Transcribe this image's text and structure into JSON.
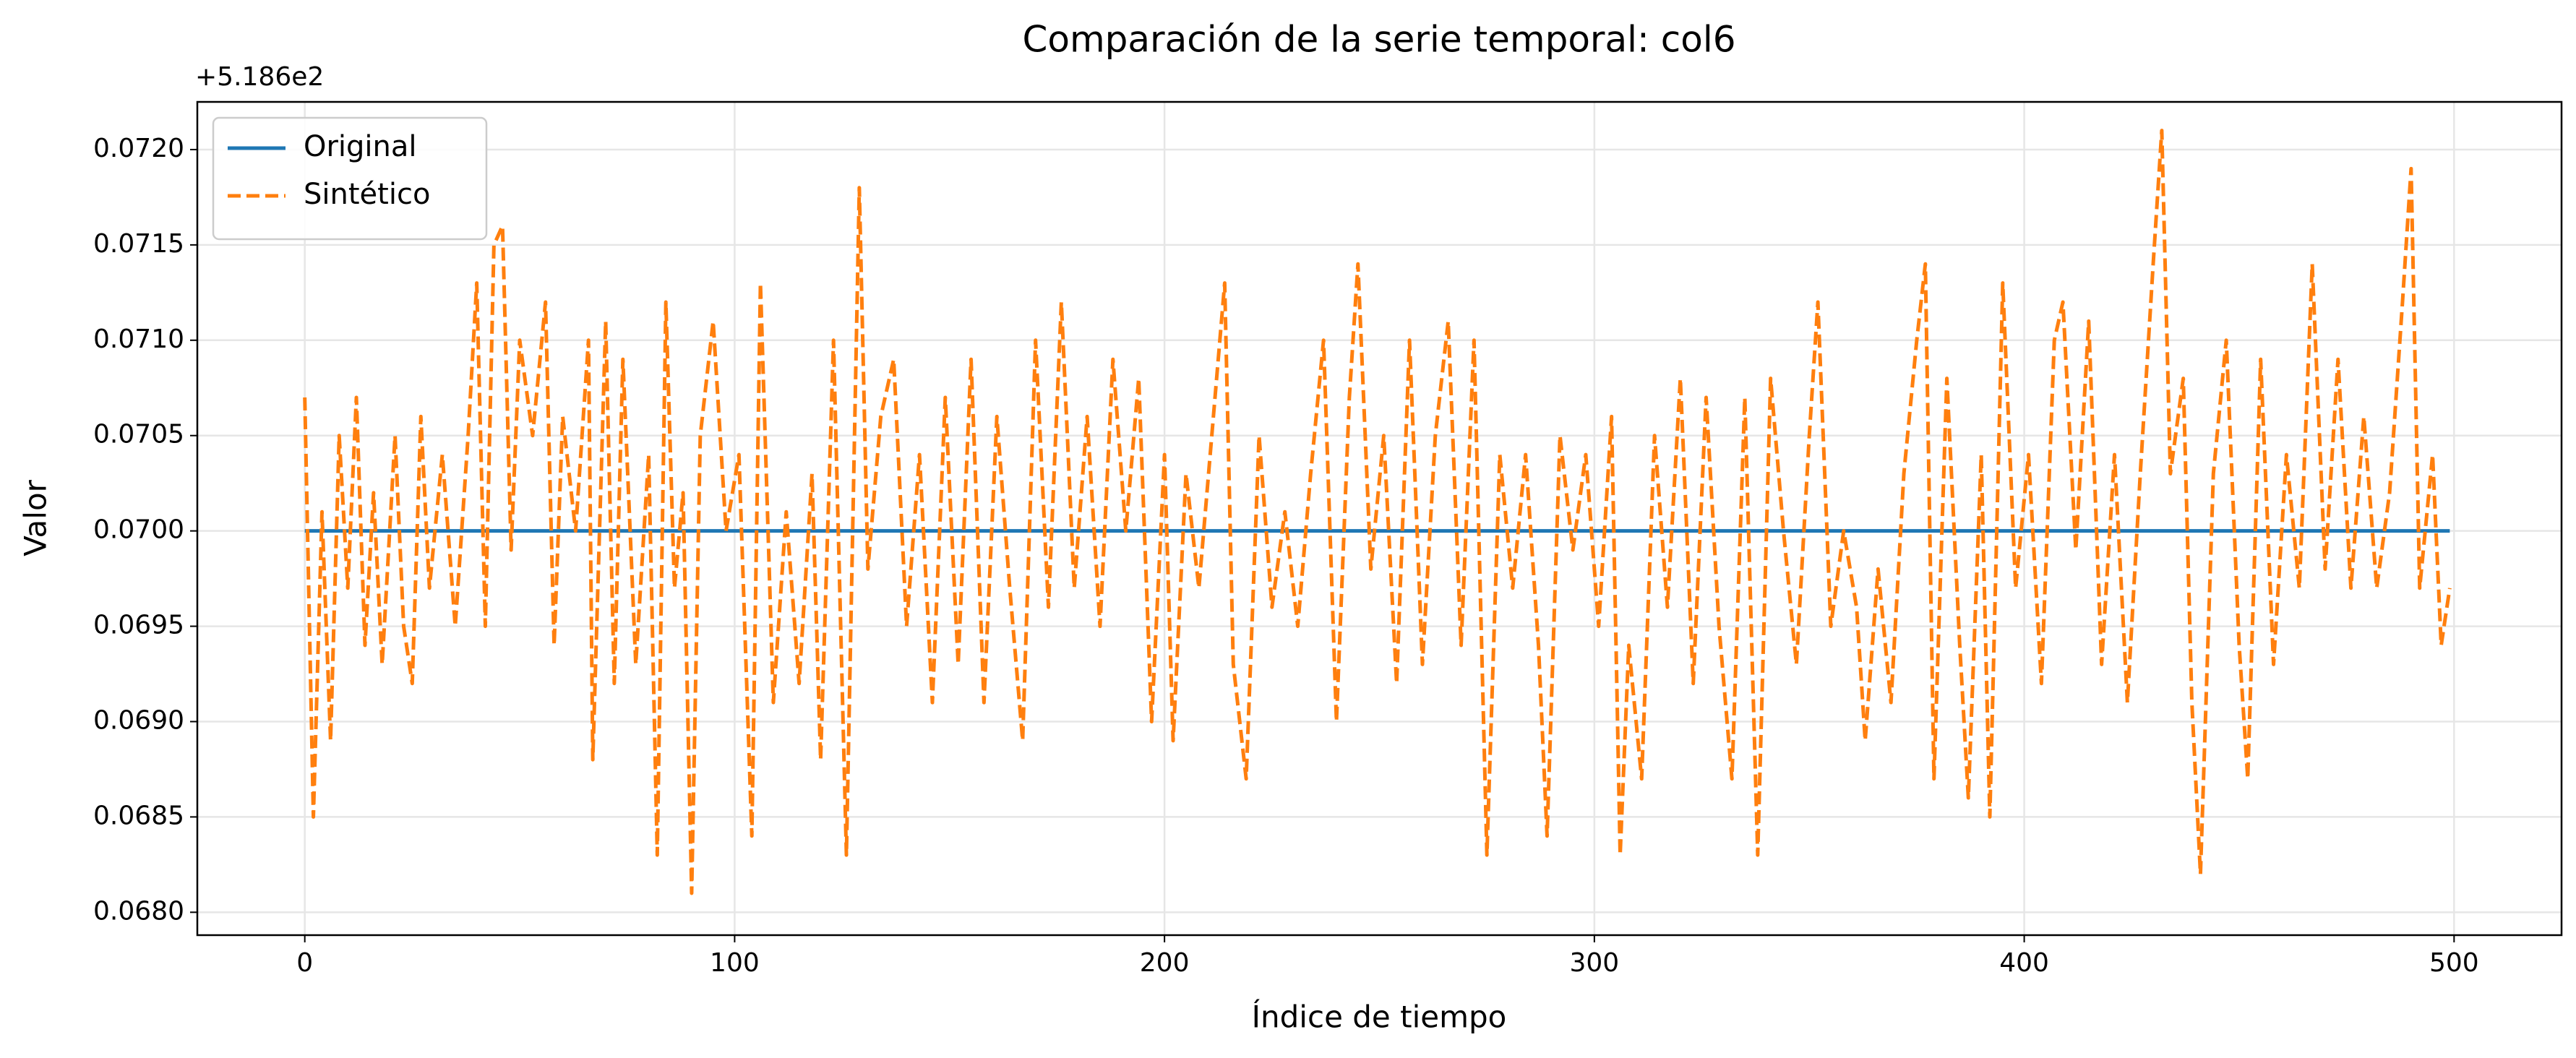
{
  "chart_data": {
    "type": "line",
    "title": "Comparación de la serie temporal: col6",
    "x_label": "Índice de tiempo",
    "y_label": "Valor",
    "y_offset_label": "+5.186e2",
    "xlim": [
      -25,
      525
    ],
    "xticks": [
      0,
      100,
      200,
      300,
      400,
      500
    ],
    "ylim": [
      0.06788,
      0.07225
    ],
    "yticks": [
      {
        "value": 0.068,
        "label": "0.0680"
      },
      {
        "value": 0.0685,
        "label": "0.0685"
      },
      {
        "value": 0.069,
        "label": "0.0690"
      },
      {
        "value": 0.0695,
        "label": "0.0695"
      },
      {
        "value": 0.07,
        "label": "0.0700"
      },
      {
        "value": 0.0705,
        "label": "0.0705"
      },
      {
        "value": 0.071,
        "label": "0.0710"
      },
      {
        "value": 0.0715,
        "label": "0.0715"
      },
      {
        "value": 0.072,
        "label": "0.0720"
      }
    ],
    "grid": true,
    "legend": "upper left",
    "series": [
      {
        "name": "Original",
        "color": "#1f77b4",
        "dash": false,
        "x": [
          0,
          499
        ],
        "values": [
          0.07,
          0.07
        ]
      },
      {
        "name": "Sintético",
        "color": "#ff7f0e",
        "dash": true,
        "x": [
          0,
          2,
          4,
          6,
          8,
          10,
          12,
          14,
          16,
          18,
          21,
          23,
          25,
          27,
          29,
          32,
          35,
          38,
          40,
          42,
          44,
          46,
          48,
          50,
          53,
          56,
          58,
          60,
          63,
          66,
          67,
          70,
          72,
          74,
          77,
          80,
          82,
          84,
          86,
          88,
          90,
          92,
          95,
          98,
          101,
          104,
          106,
          109,
          112,
          115,
          118,
          120,
          123,
          126,
          129,
          131,
          134,
          137,
          140,
          143,
          146,
          149,
          152,
          155,
          158,
          161,
          164,
          167,
          170,
          173,
          176,
          179,
          182,
          185,
          188,
          191,
          194,
          197,
          200,
          202,
          205,
          208,
          211,
          214,
          216,
          219,
          222,
          225,
          228,
          231,
          234,
          237,
          240,
          243,
          245,
          248,
          251,
          254,
          257,
          260,
          263,
          266,
          269,
          272,
          275,
          278,
          281,
          284,
          287,
          289,
          292,
          295,
          298,
          301,
          304,
          306,
          308,
          311,
          314,
          317,
          320,
          323,
          326,
          329,
          332,
          335,
          338,
          341,
          344,
          347,
          350,
          352,
          355,
          358,
          361,
          363,
          366,
          369,
          372,
          375,
          377,
          379,
          382,
          385,
          387,
          390,
          392,
          395,
          398,
          401,
          404,
          407,
          409,
          412,
          415,
          418,
          421,
          424,
          427,
          430,
          432,
          434,
          437,
          439,
          441,
          444,
          447,
          450,
          452,
          455,
          458,
          461,
          464,
          467,
          470,
          473,
          476,
          479,
          482,
          485,
          488,
          490,
          492,
          495,
          497,
          499
        ],
        "values": [
          0.0707,
          0.0685,
          0.0701,
          0.0689,
          0.0705,
          0.0697,
          0.0707,
          0.0694,
          0.0702,
          0.0693,
          0.0705,
          0.0695,
          0.0692,
          0.0706,
          0.0697,
          0.0704,
          0.0695,
          0.0705,
          0.0713,
          0.0695,
          0.0715,
          0.0716,
          0.0699,
          0.071,
          0.0705,
          0.0712,
          0.0694,
          0.0706,
          0.07,
          0.071,
          0.0688,
          0.0711,
          0.0692,
          0.0709,
          0.0693,
          0.0704,
          0.0683,
          0.0712,
          0.0697,
          0.0702,
          0.0681,
          0.0705,
          0.0711,
          0.07,
          0.0704,
          0.0684,
          0.0713,
          0.0691,
          0.0701,
          0.0692,
          0.0703,
          0.0688,
          0.071,
          0.0683,
          0.0718,
          0.0698,
          0.0706,
          0.0709,
          0.0695,
          0.0704,
          0.0691,
          0.0707,
          0.0693,
          0.0709,
          0.0691,
          0.0706,
          0.0697,
          0.0689,
          0.071,
          0.0696,
          0.0712,
          0.0697,
          0.0706,
          0.0695,
          0.0709,
          0.07,
          0.0708,
          0.069,
          0.0704,
          0.0689,
          0.0703,
          0.0697,
          0.0705,
          0.0713,
          0.0693,
          0.0687,
          0.0705,
          0.0696,
          0.0701,
          0.0695,
          0.0703,
          0.071,
          0.069,
          0.0707,
          0.0714,
          0.0698,
          0.0705,
          0.0692,
          0.071,
          0.0693,
          0.0705,
          0.0711,
          0.0694,
          0.071,
          0.0683,
          0.0704,
          0.0697,
          0.0704,
          0.0694,
          0.0684,
          0.0705,
          0.0699,
          0.0704,
          0.0695,
          0.0706,
          0.0683,
          0.0694,
          0.0687,
          0.0705,
          0.0696,
          0.0708,
          0.0692,
          0.0707,
          0.0695,
          0.0687,
          0.0707,
          0.0683,
          0.0708,
          0.07,
          0.0693,
          0.0705,
          0.0712,
          0.0695,
          0.07,
          0.0696,
          0.0689,
          0.0698,
          0.0691,
          0.0703,
          0.071,
          0.0714,
          0.0687,
          0.0708,
          0.0694,
          0.0686,
          0.0704,
          0.0685,
          0.0713,
          0.0697,
          0.0704,
          0.0692,
          0.071,
          0.0712,
          0.0699,
          0.0711,
          0.0693,
          0.0704,
          0.0691,
          0.0703,
          0.0714,
          0.0721,
          0.0703,
          0.0708,
          0.0691,
          0.0682,
          0.0703,
          0.071,
          0.0694,
          0.0687,
          0.0709,
          0.0693,
          0.0704,
          0.0697,
          0.0714,
          0.0698,
          0.0709,
          0.0697,
          0.0706,
          0.0697,
          0.0702,
          0.0712,
          0.0719,
          0.0697,
          0.0704,
          0.0694,
          0.0697
        ]
      }
    ]
  }
}
